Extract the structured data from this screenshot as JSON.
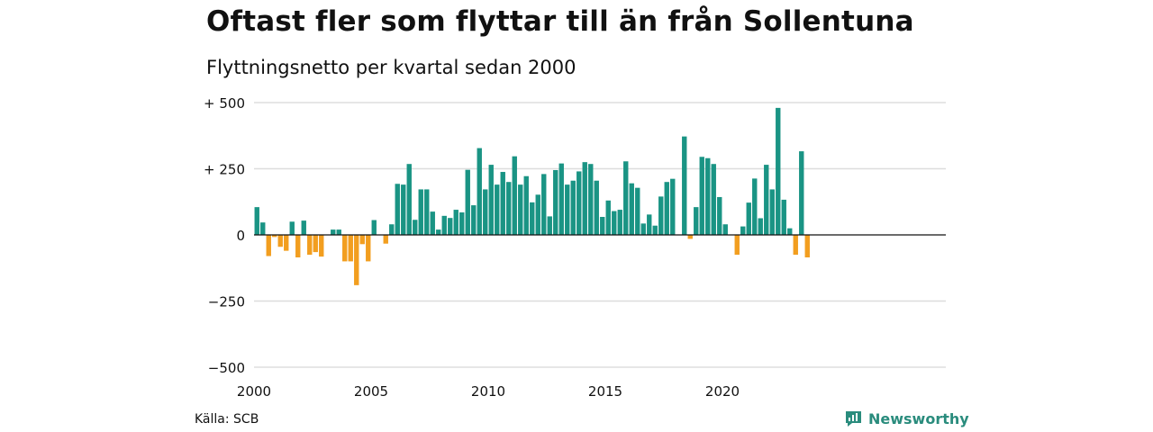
{
  "title": "Oftast fler som flyttar till än från Sollentuna",
  "subtitle": "Flyttningsnetto per kvartal sedan 2000",
  "source": "Källa: SCB",
  "brand": {
    "name": "Newsworthy",
    "icon": "newsworthy-logo-icon",
    "color": "#2a8c7d"
  },
  "colors": {
    "positive": "#1a9484",
    "negative": "#f29e1f",
    "grid": "#dddddd",
    "zero_line": "#111111"
  },
  "chart_data": {
    "type": "bar",
    "title": "Flyttningsnetto per kvartal sedan 2000",
    "xlabel": "",
    "ylabel": "",
    "ylim": [
      -500,
      500
    ],
    "yticks": [
      500,
      250,
      0,
      -250,
      -500
    ],
    "ytick_labels": [
      "+ 500",
      "+ 250",
      "0",
      "−250",
      "−500"
    ],
    "xticks": [
      "2000",
      "2005",
      "2010",
      "2015",
      "2020"
    ],
    "start_year": 2000,
    "grid": true,
    "series": [
      {
        "values": [
          105,
          47,
          -80,
          -8,
          -45,
          -60,
          50,
          -85,
          54,
          -75,
          -65,
          -82,
          0,
          20,
          20,
          -100,
          -100,
          -190,
          -35,
          -100,
          56,
          0,
          -33,
          40,
          193,
          190,
          268,
          57,
          172,
          172,
          88,
          20,
          72,
          64,
          95,
          85,
          246,
          112,
          328,
          172,
          265,
          190,
          238,
          200,
          297,
          190,
          222,
          123,
          152,
          230,
          70,
          245,
          270,
          190,
          205,
          240,
          275,
          268,
          205,
          68,
          130,
          90,
          95,
          278,
          195,
          178,
          43,
          77,
          35,
          145,
          200,
          212,
          0,
          372,
          -15,
          105,
          295,
          290,
          268,
          143,
          40,
          0,
          -75,
          32,
          122,
          213,
          63,
          265,
          172,
          480,
          133,
          25,
          -75,
          316,
          -85
        ]
      }
    ]
  }
}
